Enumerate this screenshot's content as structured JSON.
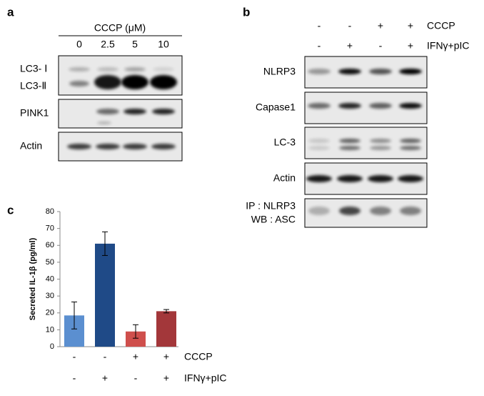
{
  "panel_a": {
    "label": "a",
    "treatment": "CCCP (μM)",
    "lanes": [
      "0",
      "2.5",
      "5",
      "10"
    ],
    "blots": [
      "LC3- Ⅰ",
      "LC3-Ⅱ",
      "PINK1",
      "Actin"
    ]
  },
  "panel_b": {
    "label": "b",
    "conditions": [
      {
        "name": "CCCP",
        "signs": [
          "-",
          "-",
          "+",
          "+"
        ]
      },
      {
        "name": "IFNγ+pIC",
        "signs": [
          "-",
          "+",
          "-",
          "+"
        ]
      }
    ],
    "blots": [
      "NLRP3",
      "Capase1",
      "LC-3",
      "Actin",
      "IP : NLRP3",
      "WB : ASC"
    ]
  },
  "panel_c": {
    "label": "c"
  },
  "chart_data": {
    "type": "bar",
    "y_label": "Secreted IL-1β (pg/ml)",
    "conditions": [
      {
        "name": "CCCP",
        "signs": [
          "-",
          "-",
          "+",
          "+"
        ]
      },
      {
        "name": "IFNγ+pIC",
        "signs": [
          "-",
          "+",
          "-",
          "+"
        ]
      }
    ],
    "values": [
      18.5,
      61,
      9,
      21
    ],
    "errors": [
      8,
      7,
      4,
      1
    ],
    "colors": [
      "#5b8fd0",
      "#1f4a87",
      "#cf4f4c",
      "#a3373a"
    ],
    "ylim": [
      0,
      80
    ],
    "yticks": [
      0,
      10,
      20,
      30,
      40,
      50,
      60,
      70,
      80
    ]
  }
}
